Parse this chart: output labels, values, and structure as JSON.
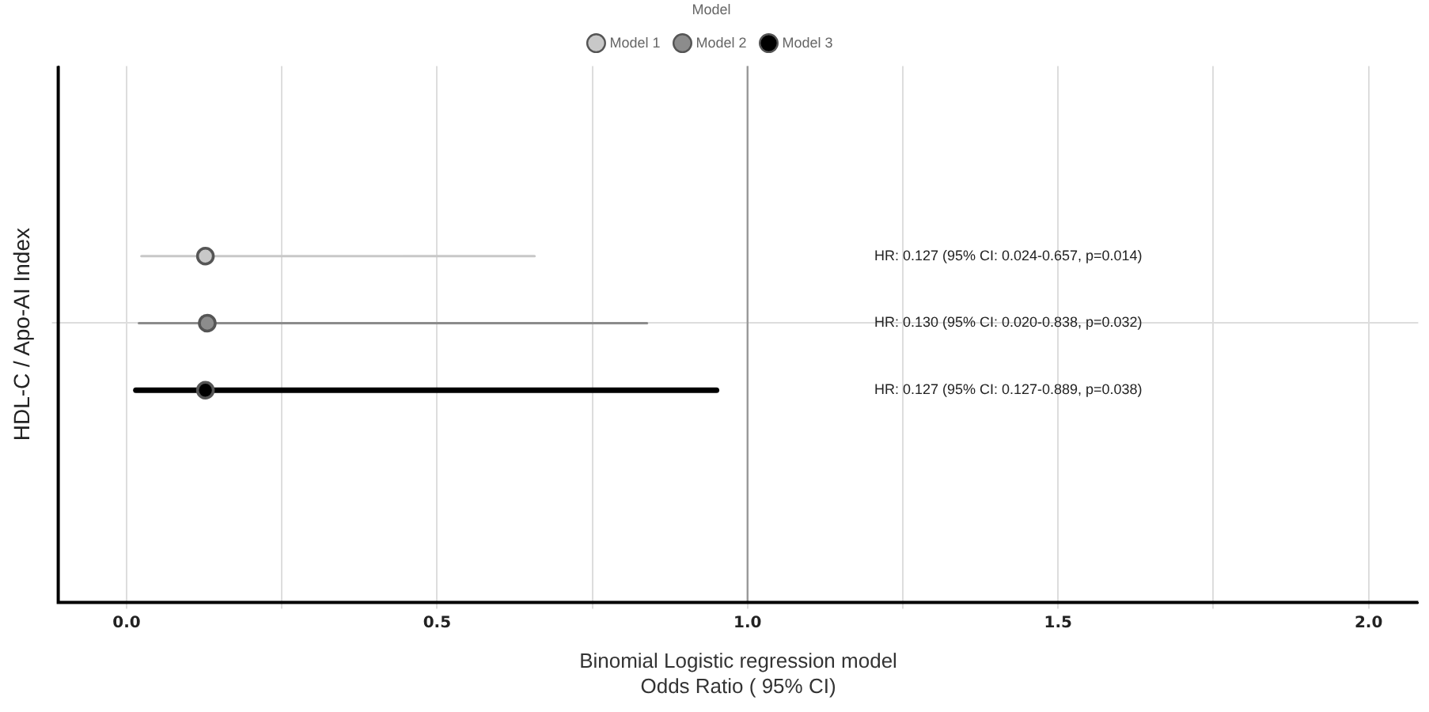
{
  "chart_data": {
    "type": "scatter",
    "orientation": "horizontal",
    "categories": [
      null
    ],
    "xlabel": "Binomial Logistic regression model\nOdds Ratio ( 95% CI)",
    "ylabel": "HDL-C / Apo-AI Index",
    "legend_title": "Model",
    "legend": "top",
    "marker": "circle",
    "grid": true,
    "xlim": [
      -0.11,
      2.08
    ],
    "xticks": [
      {
        "value": 0,
        "label": "0.0"
      },
      {
        "value": 0.25,
        "label": null
      },
      0.5,
      {
        "value": 0.75,
        "label": null
      },
      {
        "value": 1,
        "label": "1.0"
      },
      {
        "value": 1.25,
        "label": null
      },
      1.5,
      {
        "value": 1.75,
        "label": null
      },
      {
        "value": 2,
        "label": "2.0"
      }
    ],
    "ref_lines": [
      {
        "axis": "x",
        "value": 1,
        "color": "#999999"
      }
    ],
    "series": [
      {
        "name": "Model 1",
        "color": "#c8c8c8",
        "values": [
          0.127
        ],
        "errors": [
          [
            0.024,
            0.657
          ]
        ]
      },
      {
        "name": "Model 2",
        "color": "#8c8c8c",
        "values": [
          0.13
        ],
        "errors": [
          [
            0.02,
            0.838
          ]
        ]
      },
      {
        "name": "Model 3",
        "color": "#000000",
        "values": [
          0.127
        ],
        "errors": [
          [
            0.015,
            0.95
          ]
        ]
      }
    ],
    "annotations": [
      "HR: 0.127 (95% CI: 0.024-0.657, p=0.014)",
      "HR: 0.130 (95% CI: 0.020-0.838, p=0.032)",
      "HR: 0.127 (95% CI: 0.127-0.889, p=0.038)"
    ]
  }
}
